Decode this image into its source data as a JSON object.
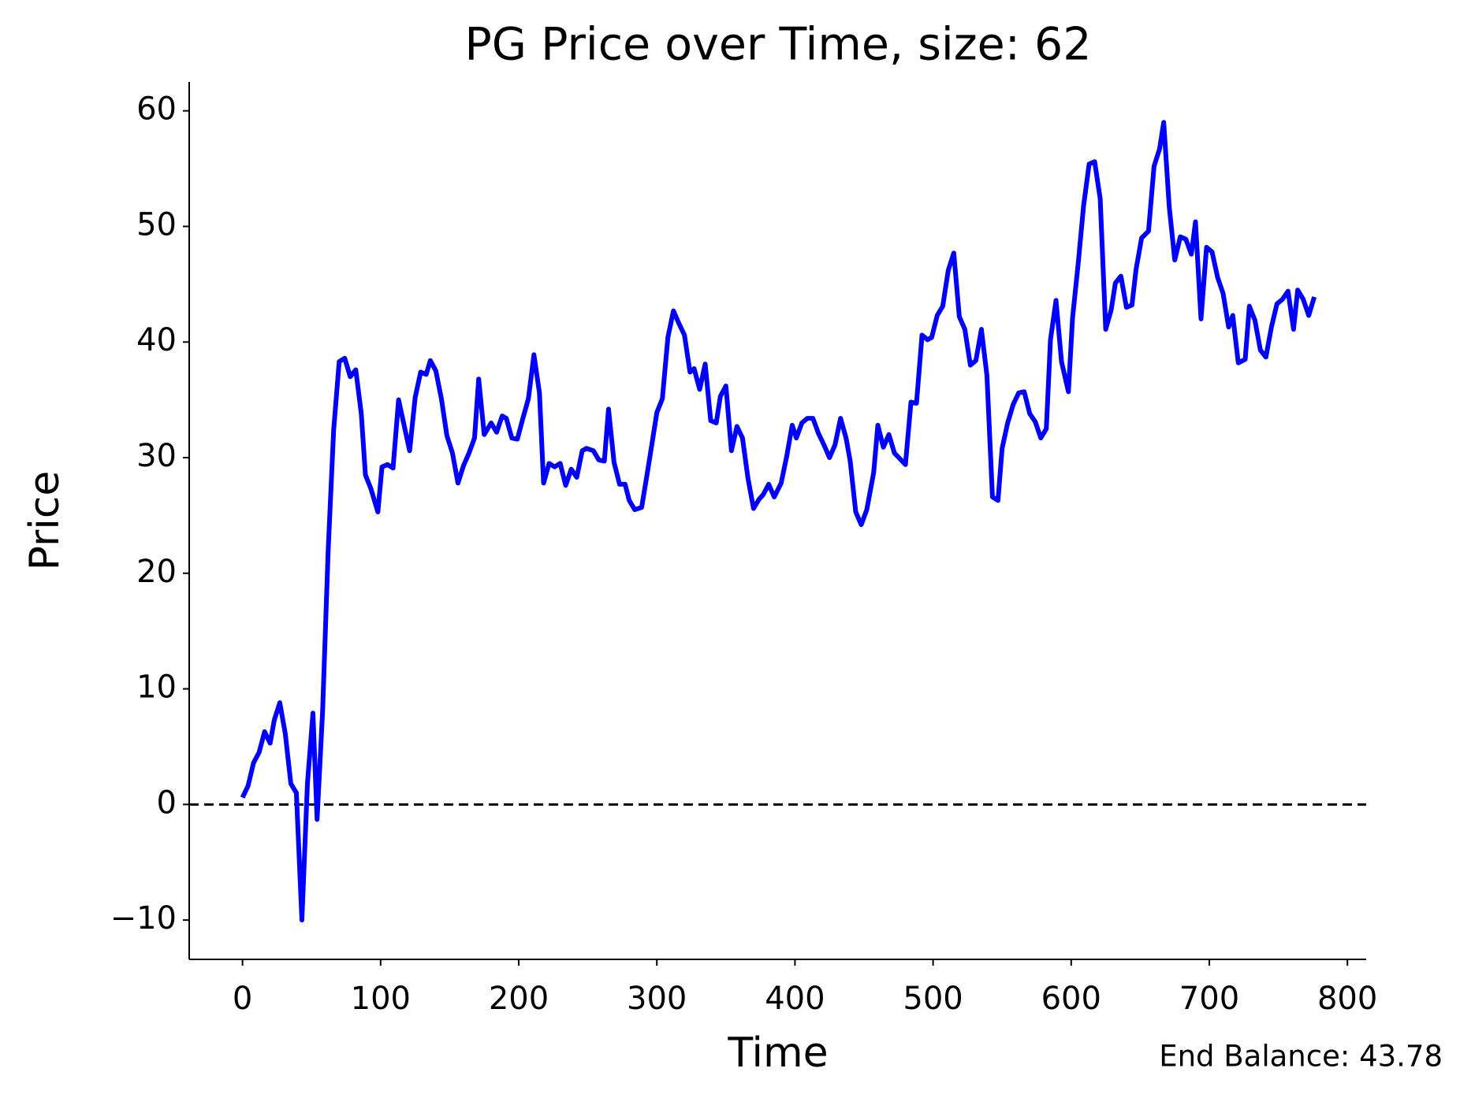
{
  "chart_data": {
    "type": "line",
    "title": "PG Price over Time, size: 62",
    "x_label": "Time",
    "y_label": "Price",
    "annotation": "End Balance: 43.78",
    "xlim": [
      -38.6,
      813.6
    ],
    "ylim": [
      -13.4,
      62.5
    ],
    "xticks": [
      0,
      100,
      200,
      300,
      400,
      500,
      600,
      700,
      800
    ],
    "yticks": [
      {
        "value": -10,
        "label": "−10"
      },
      0,
      10,
      20,
      30,
      40,
      50,
      60
    ],
    "hline": 0,
    "hline_color": "#000000",
    "grid": false,
    "series": [
      {
        "name": "Price",
        "color": "#0000ff",
        "x": [
          0,
          4,
          8,
          12,
          16,
          20,
          23,
          27,
          31,
          35,
          39,
          43,
          47,
          51,
          54,
          58,
          62,
          66,
          70,
          74,
          78,
          82,
          86,
          89,
          93,
          98,
          101,
          105,
          109,
          113,
          117,
          121,
          125,
          129,
          133,
          136,
          140,
          144,
          148,
          152,
          156,
          160,
          164,
          168,
          171,
          175,
          180,
          184,
          188,
          191,
          195,
          199,
          203,
          207,
          211,
          215,
          218,
          222,
          226,
          230,
          234,
          238,
          242,
          246,
          249,
          254,
          258,
          262,
          265,
          269,
          273,
          277,
          280,
          284,
          289,
          293,
          297,
          300,
          304,
          308,
          312,
          316,
          320,
          324,
          327,
          331,
          335,
          339,
          343,
          346,
          350,
          354,
          358,
          362,
          366,
          370,
          374,
          377,
          381,
          385,
          390,
          394,
          398,
          401,
          405,
          409,
          413,
          417,
          421,
          425,
          429,
          433,
          437,
          440,
          444,
          448,
          452,
          457,
          460,
          464,
          468,
          472,
          476,
          480,
          484,
          488,
          492,
          496,
          499,
          503,
          507,
          511,
          515,
          519,
          523,
          527,
          531,
          535,
          539,
          543,
          547,
          550,
          554,
          558,
          562,
          566,
          570,
          574,
          578,
          582,
          585,
          589,
          593,
          598,
          601,
          605,
          609,
          613,
          617,
          621,
          625,
          629,
          632,
          636,
          640,
          644,
          647,
          651,
          656,
          660,
          664,
          667,
          671,
          675,
          679,
          683,
          687,
          690,
          694,
          698,
          702,
          706,
          710,
          714,
          717,
          721,
          726,
          729,
          733,
          737,
          741,
          745,
          749,
          753,
          757,
          761,
          764,
          768,
          772,
          776
        ],
        "values": [
          0.6,
          1.6,
          3.6,
          4.5,
          6.3,
          5.3,
          7.3,
          8.8,
          6.1,
          1.8,
          1.0,
          -10,
          1.8,
          7.9,
          -1.3,
          8.1,
          21.9,
          32.4,
          38.3,
          38.6,
          37,
          37.6,
          33.8,
          28.5,
          27.3,
          25.3,
          29.2,
          29.4,
          29.1,
          35,
          32.8,
          30.6,
          35.2,
          37.4,
          37.2,
          38.4,
          37.5,
          35.1,
          31.9,
          30.4,
          27.8,
          29.3,
          30.4,
          31.7,
          36.8,
          32,
          33,
          32.2,
          33.6,
          33.4,
          31.7,
          31.6,
          33.4,
          35.1,
          38.9,
          35.6,
          27.8,
          29.5,
          29.2,
          29.5,
          27.6,
          29,
          28.3,
          30.6,
          30.8,
          30.6,
          29.8,
          29.7,
          34.2,
          29.6,
          27.7,
          27.7,
          26.3,
          25.5,
          25.7,
          28.6,
          31.6,
          33.9,
          35.1,
          40.4,
          42.7,
          41.6,
          40.6,
          37.4,
          37.7,
          35.9,
          38.1,
          33.2,
          33,
          35.3,
          36.2,
          30.6,
          32.7,
          31.7,
          28.2,
          25.6,
          26.4,
          26.8,
          27.7,
          26.6,
          27.8,
          30.1,
          32.8,
          31.7,
          33,
          33.4,
          33.4,
          32.1,
          31.1,
          30,
          31.1,
          33.4,
          31.7,
          29.7,
          25.3,
          24.2,
          25.5,
          28.7,
          32.8,
          30.9,
          32,
          30.4,
          29.9,
          29.4,
          34.8,
          34.7,
          40.6,
          40.2,
          40.4,
          42.3,
          43.1,
          46.2,
          47.7,
          42.2,
          41.1,
          38,
          38.4,
          41.1,
          37.1,
          26.6,
          26.3,
          30.8,
          33,
          34.6,
          35.6,
          35.7,
          33.8,
          33.1,
          31.7,
          32.5,
          40.2,
          43.6,
          38.3,
          35.7,
          42.1,
          46.7,
          51.8,
          55.4,
          55.6,
          52.4,
          41.1,
          42.8,
          45.1,
          45.7,
          43,
          43.2,
          46.3,
          49,
          49.6,
          55.2,
          56.7,
          59,
          51.7,
          47.1,
          49.1,
          48.9,
          47.6,
          50.4,
          42,
          48.2,
          47.8,
          45.6,
          44.2,
          41.3,
          42.3,
          38.2,
          38.5,
          43.1,
          41.9,
          39.3,
          38.7,
          41.3,
          43.3,
          43.7,
          44.4,
          41.1,
          44.5,
          43.7,
          42.3,
          43.9
        ]
      }
    ]
  }
}
